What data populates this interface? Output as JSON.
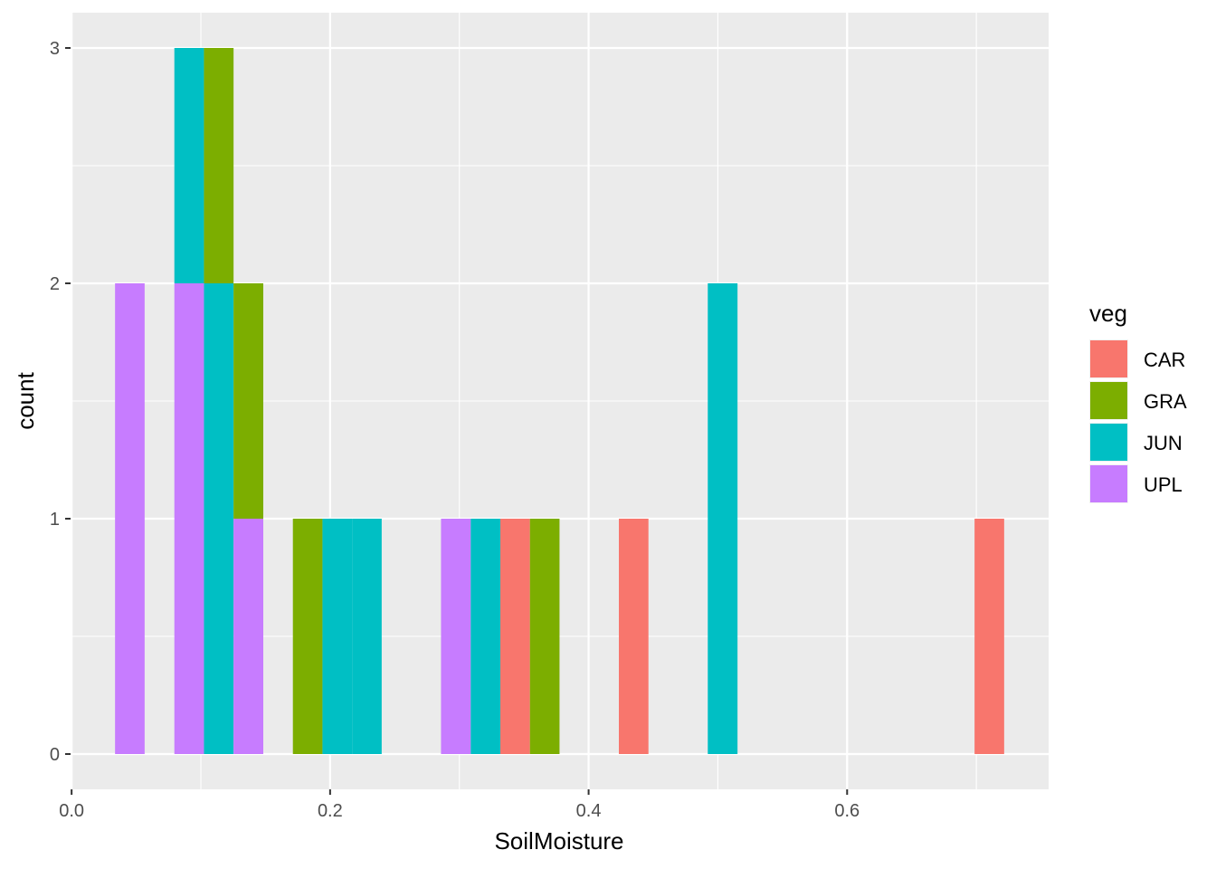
{
  "chart_data": {
    "type": "bar",
    "subtype": "stacked histogram",
    "xlabel": "SoilMoisture",
    "ylabel": "count",
    "xlim": [
      -0.0008,
      0.7559
    ],
    "ylim": [
      -0.15,
      3.15
    ],
    "xticks": [
      0.0,
      0.2,
      0.4,
      0.6
    ],
    "xtick_labels": [
      "0.0",
      "0.2",
      "0.4",
      "0.6"
    ],
    "yticks": [
      0,
      1,
      2,
      3
    ],
    "ytick_labels": [
      "0",
      "1",
      "2",
      "3"
    ],
    "grid": true,
    "legend": {
      "title": "veg",
      "position": "right",
      "entries": [
        "CAR",
        "GRA",
        "JUN",
        "UPL"
      ]
    },
    "colors": {
      "CAR": "#F8766D",
      "GRA": "#7CAE00",
      "JUN": "#00BFC4",
      "UPL": "#C77CFF"
    },
    "stack_order_bottom_to_top": [
      "UPL",
      "JUN",
      "GRA",
      "CAR"
    ],
    "bins": [
      {
        "xmin": 0.0336,
        "xmax": 0.0565,
        "counts": {
          "UPL": 2
        }
      },
      {
        "xmin": 0.0795,
        "xmax": 0.1024,
        "counts": {
          "UPL": 2,
          "JUN": 1
        }
      },
      {
        "xmin": 0.1024,
        "xmax": 0.1253,
        "counts": {
          "JUN": 2,
          "GRA": 1
        }
      },
      {
        "xmin": 0.1253,
        "xmax": 0.1483,
        "counts": {
          "UPL": 1,
          "GRA": 1
        }
      },
      {
        "xmin": 0.1712,
        "xmax": 0.1941,
        "counts": {
          "GRA": 1
        }
      },
      {
        "xmin": 0.1941,
        "xmax": 0.217,
        "counts": {
          "JUN": 1
        }
      },
      {
        "xmin": 0.217,
        "xmax": 0.2399,
        "counts": {
          "JUN": 1
        }
      },
      {
        "xmin": 0.2858,
        "xmax": 0.3088,
        "counts": {
          "UPL": 1
        }
      },
      {
        "xmin": 0.3088,
        "xmax": 0.3317,
        "counts": {
          "JUN": 1
        }
      },
      {
        "xmin": 0.3317,
        "xmax": 0.3546,
        "counts": {
          "CAR": 1
        }
      },
      {
        "xmin": 0.3546,
        "xmax": 0.3775,
        "counts": {
          "GRA": 1
        }
      },
      {
        "xmin": 0.4234,
        "xmax": 0.4463,
        "counts": {
          "CAR": 1
        }
      },
      {
        "xmin": 0.4922,
        "xmax": 0.5152,
        "counts": {
          "JUN": 2
        }
      },
      {
        "xmin": 0.6986,
        "xmax": 0.7215,
        "counts": {
          "CAR": 1
        }
      }
    ]
  }
}
